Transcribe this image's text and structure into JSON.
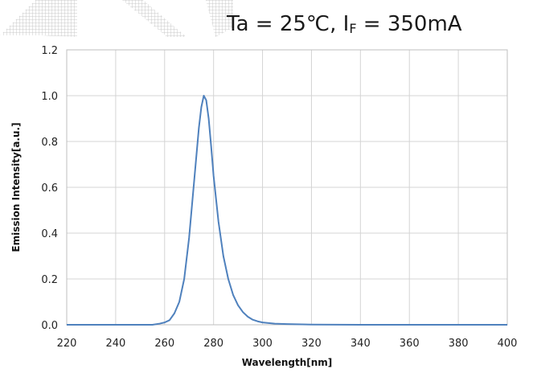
{
  "header": {
    "condition_main": "Ta = 25℃, I",
    "condition_sub": "F",
    "condition_tail": " = 350mA"
  },
  "chart_data": {
    "type": "line",
    "title": "",
    "xlabel": "Wavelength[nm]",
    "ylabel": "Emission Intensity[a.u.]",
    "xlim": [
      220,
      400
    ],
    "ylim": [
      0,
      1.2
    ],
    "x_ticks": [
      "220",
      "240",
      "260",
      "280",
      "300",
      "320",
      "340",
      "360",
      "380",
      "400"
    ],
    "y_ticks": [
      "0.0",
      "0.2",
      "0.4",
      "0.6",
      "0.8",
      "1.0",
      "1.2"
    ],
    "grid": true,
    "line_color": "#4f81bd",
    "series": [
      {
        "x": [
          220,
          230,
          240,
          250,
          255,
          258,
          260,
          262,
          264,
          266,
          268,
          270,
          272,
          274,
          275,
          276,
          277,
          278,
          279,
          280,
          282,
          284,
          286,
          288,
          290,
          292,
          294,
          296,
          298,
          300,
          305,
          310,
          320,
          340,
          360,
          380,
          400
        ],
        "y": [
          0.0,
          0.0,
          0.0,
          0.0,
          0.0,
          0.005,
          0.01,
          0.02,
          0.05,
          0.1,
          0.2,
          0.38,
          0.62,
          0.86,
          0.95,
          1.0,
          0.98,
          0.9,
          0.78,
          0.65,
          0.45,
          0.3,
          0.2,
          0.13,
          0.085,
          0.055,
          0.035,
          0.022,
          0.015,
          0.01,
          0.005,
          0.003,
          0.001,
          0.0,
          0.0,
          0.0,
          0.0
        ]
      }
    ]
  }
}
